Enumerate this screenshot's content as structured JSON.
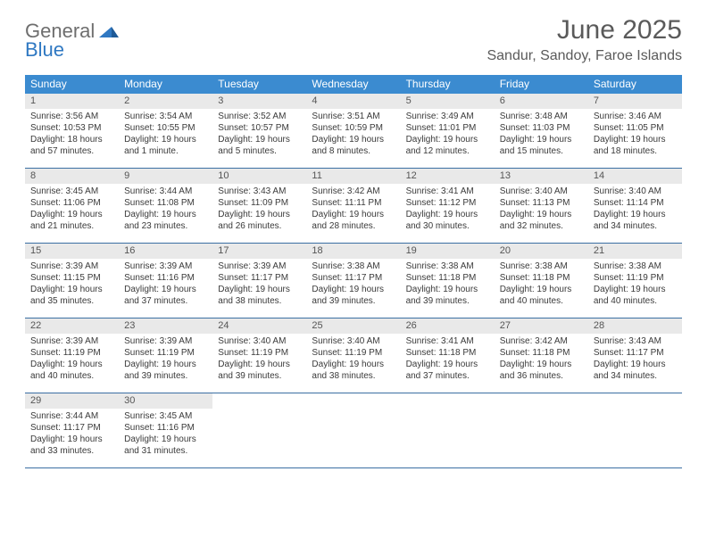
{
  "logo": {
    "word1": "General",
    "word2": "Blue"
  },
  "title": "June 2025",
  "location": "Sandur, Sandoy, Faroe Islands",
  "colors": {
    "header_bg": "#3b8bd0",
    "header_text": "#ffffff",
    "daynum_bg": "#e9e9e9",
    "week_border": "#3b6fa3",
    "title_color": "#5a5a5a",
    "logo_gray": "#6e6e6e",
    "logo_blue": "#2f78c2"
  },
  "weekdays": [
    "Sunday",
    "Monday",
    "Tuesday",
    "Wednesday",
    "Thursday",
    "Friday",
    "Saturday"
  ],
  "weeks": [
    [
      {
        "n": "1",
        "sr": "Sunrise: 3:56 AM",
        "ss": "Sunset: 10:53 PM",
        "d1": "Daylight: 18 hours",
        "d2": "and 57 minutes."
      },
      {
        "n": "2",
        "sr": "Sunrise: 3:54 AM",
        "ss": "Sunset: 10:55 PM",
        "d1": "Daylight: 19 hours",
        "d2": "and 1 minute."
      },
      {
        "n": "3",
        "sr": "Sunrise: 3:52 AM",
        "ss": "Sunset: 10:57 PM",
        "d1": "Daylight: 19 hours",
        "d2": "and 5 minutes."
      },
      {
        "n": "4",
        "sr": "Sunrise: 3:51 AM",
        "ss": "Sunset: 10:59 PM",
        "d1": "Daylight: 19 hours",
        "d2": "and 8 minutes."
      },
      {
        "n": "5",
        "sr": "Sunrise: 3:49 AM",
        "ss": "Sunset: 11:01 PM",
        "d1": "Daylight: 19 hours",
        "d2": "and 12 minutes."
      },
      {
        "n": "6",
        "sr": "Sunrise: 3:48 AM",
        "ss": "Sunset: 11:03 PM",
        "d1": "Daylight: 19 hours",
        "d2": "and 15 minutes."
      },
      {
        "n": "7",
        "sr": "Sunrise: 3:46 AM",
        "ss": "Sunset: 11:05 PM",
        "d1": "Daylight: 19 hours",
        "d2": "and 18 minutes."
      }
    ],
    [
      {
        "n": "8",
        "sr": "Sunrise: 3:45 AM",
        "ss": "Sunset: 11:06 PM",
        "d1": "Daylight: 19 hours",
        "d2": "and 21 minutes."
      },
      {
        "n": "9",
        "sr": "Sunrise: 3:44 AM",
        "ss": "Sunset: 11:08 PM",
        "d1": "Daylight: 19 hours",
        "d2": "and 23 minutes."
      },
      {
        "n": "10",
        "sr": "Sunrise: 3:43 AM",
        "ss": "Sunset: 11:09 PM",
        "d1": "Daylight: 19 hours",
        "d2": "and 26 minutes."
      },
      {
        "n": "11",
        "sr": "Sunrise: 3:42 AM",
        "ss": "Sunset: 11:11 PM",
        "d1": "Daylight: 19 hours",
        "d2": "and 28 minutes."
      },
      {
        "n": "12",
        "sr": "Sunrise: 3:41 AM",
        "ss": "Sunset: 11:12 PM",
        "d1": "Daylight: 19 hours",
        "d2": "and 30 minutes."
      },
      {
        "n": "13",
        "sr": "Sunrise: 3:40 AM",
        "ss": "Sunset: 11:13 PM",
        "d1": "Daylight: 19 hours",
        "d2": "and 32 minutes."
      },
      {
        "n": "14",
        "sr": "Sunrise: 3:40 AM",
        "ss": "Sunset: 11:14 PM",
        "d1": "Daylight: 19 hours",
        "d2": "and 34 minutes."
      }
    ],
    [
      {
        "n": "15",
        "sr": "Sunrise: 3:39 AM",
        "ss": "Sunset: 11:15 PM",
        "d1": "Daylight: 19 hours",
        "d2": "and 35 minutes."
      },
      {
        "n": "16",
        "sr": "Sunrise: 3:39 AM",
        "ss": "Sunset: 11:16 PM",
        "d1": "Daylight: 19 hours",
        "d2": "and 37 minutes."
      },
      {
        "n": "17",
        "sr": "Sunrise: 3:39 AM",
        "ss": "Sunset: 11:17 PM",
        "d1": "Daylight: 19 hours",
        "d2": "and 38 minutes."
      },
      {
        "n": "18",
        "sr": "Sunrise: 3:38 AM",
        "ss": "Sunset: 11:17 PM",
        "d1": "Daylight: 19 hours",
        "d2": "and 39 minutes."
      },
      {
        "n": "19",
        "sr": "Sunrise: 3:38 AM",
        "ss": "Sunset: 11:18 PM",
        "d1": "Daylight: 19 hours",
        "d2": "and 39 minutes."
      },
      {
        "n": "20",
        "sr": "Sunrise: 3:38 AM",
        "ss": "Sunset: 11:18 PM",
        "d1": "Daylight: 19 hours",
        "d2": "and 40 minutes."
      },
      {
        "n": "21",
        "sr": "Sunrise: 3:38 AM",
        "ss": "Sunset: 11:19 PM",
        "d1": "Daylight: 19 hours",
        "d2": "and 40 minutes."
      }
    ],
    [
      {
        "n": "22",
        "sr": "Sunrise: 3:39 AM",
        "ss": "Sunset: 11:19 PM",
        "d1": "Daylight: 19 hours",
        "d2": "and 40 minutes."
      },
      {
        "n": "23",
        "sr": "Sunrise: 3:39 AM",
        "ss": "Sunset: 11:19 PM",
        "d1": "Daylight: 19 hours",
        "d2": "and 39 minutes."
      },
      {
        "n": "24",
        "sr": "Sunrise: 3:40 AM",
        "ss": "Sunset: 11:19 PM",
        "d1": "Daylight: 19 hours",
        "d2": "and 39 minutes."
      },
      {
        "n": "25",
        "sr": "Sunrise: 3:40 AM",
        "ss": "Sunset: 11:19 PM",
        "d1": "Daylight: 19 hours",
        "d2": "and 38 minutes."
      },
      {
        "n": "26",
        "sr": "Sunrise: 3:41 AM",
        "ss": "Sunset: 11:18 PM",
        "d1": "Daylight: 19 hours",
        "d2": "and 37 minutes."
      },
      {
        "n": "27",
        "sr": "Sunrise: 3:42 AM",
        "ss": "Sunset: 11:18 PM",
        "d1": "Daylight: 19 hours",
        "d2": "and 36 minutes."
      },
      {
        "n": "28",
        "sr": "Sunrise: 3:43 AM",
        "ss": "Sunset: 11:17 PM",
        "d1": "Daylight: 19 hours",
        "d2": "and 34 minutes."
      }
    ],
    [
      {
        "n": "29",
        "sr": "Sunrise: 3:44 AM",
        "ss": "Sunset: 11:17 PM",
        "d1": "Daylight: 19 hours",
        "d2": "and 33 minutes."
      },
      {
        "n": "30",
        "sr": "Sunrise: 3:45 AM",
        "ss": "Sunset: 11:16 PM",
        "d1": "Daylight: 19 hours",
        "d2": "and 31 minutes."
      },
      null,
      null,
      null,
      null,
      null
    ]
  ]
}
